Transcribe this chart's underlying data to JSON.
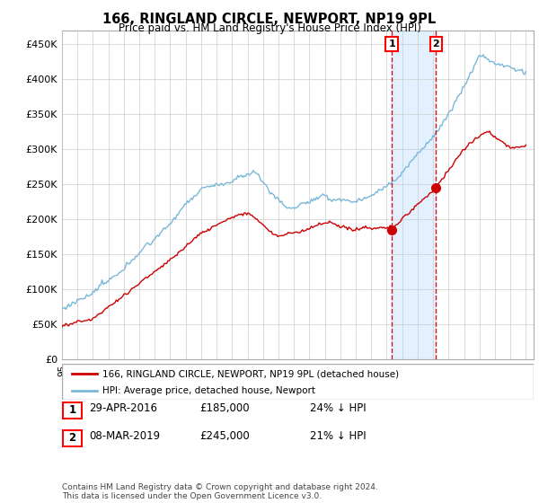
{
  "title": "166, RINGLAND CIRCLE, NEWPORT, NP19 9PL",
  "subtitle": "Price paid vs. HM Land Registry's House Price Index (HPI)",
  "ylim": [
    0,
    470000
  ],
  "ytick_values": [
    0,
    50000,
    100000,
    150000,
    200000,
    250000,
    300000,
    350000,
    400000,
    450000
  ],
  "hpi_color": "#7ab8d8",
  "price_color": "#cc0000",
  "shade_color": "#ddeeff",
  "legend_label_price": "166, RINGLAND CIRCLE, NEWPORT, NP19 9PL (detached house)",
  "legend_label_hpi": "HPI: Average price, detached house, Newport",
  "transaction1_date": "29-APR-2016",
  "transaction1_price": 185000,
  "transaction1_pct": "24% ↓ HPI",
  "transaction2_date": "08-MAR-2019",
  "transaction2_price": 245000,
  "transaction2_pct": "21% ↓ HPI",
  "footer": "Contains HM Land Registry data © Crown copyright and database right 2024.\nThis data is licensed under the Open Government Licence v3.0.",
  "background_color": "#ffffff",
  "grid_color": "#cccccc"
}
